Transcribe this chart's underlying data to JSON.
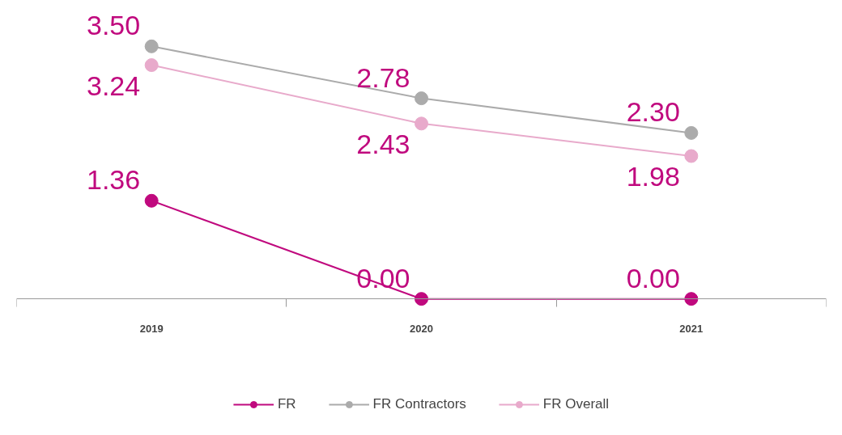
{
  "chart_data": {
    "type": "line",
    "categories": [
      "2019",
      "2020",
      "2021"
    ],
    "series": [
      {
        "name": "FR",
        "color": "#c0097e",
        "values": [
          1.36,
          0.0,
          0.0
        ],
        "value_labels": [
          "1.36",
          "0.00",
          "0.00"
        ]
      },
      {
        "name": "FR Contractors",
        "color": "#ababab",
        "values": [
          3.5,
          2.78,
          2.3
        ],
        "value_labels": [
          "3.50",
          "2.78",
          "2.30"
        ]
      },
      {
        "name": "FR Overall",
        "color": "#e8aacb",
        "values": [
          3.24,
          2.43,
          1.98
        ],
        "value_labels": [
          "3.24",
          "2.43",
          "1.98"
        ]
      }
    ],
    "data_labels": true,
    "marker": "circle",
    "line_style": "solid",
    "grid": false,
    "legend": "bottom"
  }
}
